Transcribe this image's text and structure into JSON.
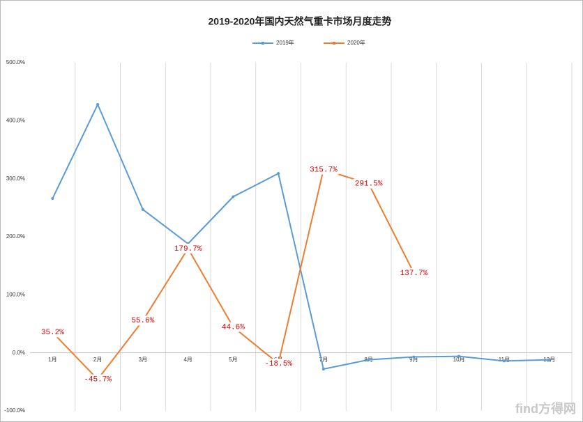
{
  "chart_data": {
    "type": "line",
    "title": "2019-2020年国内天然气重卡市场月度走势",
    "categories": [
      "1月",
      "2月",
      "3月",
      "4月",
      "5月",
      "6月",
      "7月",
      "8月",
      "9月",
      "10月",
      "11月",
      "12月"
    ],
    "series": [
      {
        "name": "2019年",
        "color": "#5b9bd5",
        "values": [
          266,
          428,
          247,
          188,
          269,
          309,
          -28,
          -12,
          -7,
          -6,
          -14,
          -12
        ]
      },
      {
        "name": "2020年",
        "color": "#ed7d31",
        "values": [
          35.2,
          -45.7,
          55.6,
          179.7,
          44.6,
          -18.5,
          315.7,
          291.5,
          137.7,
          null,
          null,
          null
        ],
        "value_labels": [
          "35.2%",
          "-45.7%",
          "55.6%",
          "179.7%",
          "44.6%",
          "-18.5%",
          "315.7%",
          "291.5%",
          "137.7%",
          null,
          null,
          null
        ]
      }
    ],
    "ylim": [
      -100,
      500
    ],
    "yticks": [
      {
        "value": -100,
        "label": "-100.0%"
      },
      {
        "value": 0,
        "label": "0.0%"
      },
      {
        "value": 100,
        "label": "100.0%"
      },
      {
        "value": 200,
        "label": "200.0%"
      },
      {
        "value": 300,
        "label": "300.0%"
      },
      {
        "value": 400,
        "label": "400.0%"
      },
      {
        "value": 500,
        "label": "500.0%"
      }
    ],
    "xgrid": true,
    "legend": "top",
    "label_color": "#e00000",
    "watermark": "find方得网"
  }
}
